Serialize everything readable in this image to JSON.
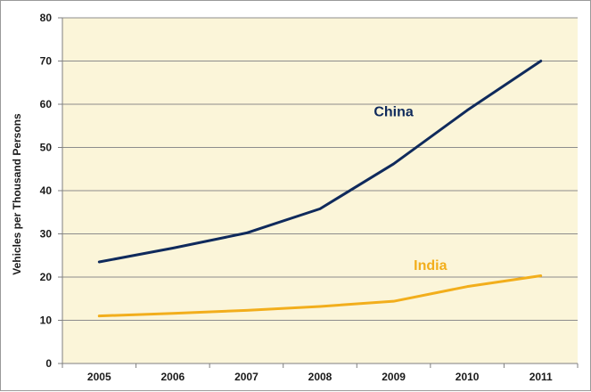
{
  "chart_data": {
    "type": "line",
    "title": "",
    "xlabel": "",
    "ylabel": "Vehicles per Thousand Persons",
    "x": [
      "2005",
      "2006",
      "2007",
      "2008",
      "2009",
      "2010",
      "2011"
    ],
    "ylim": [
      0,
      80
    ],
    "yticks": [
      "0",
      "10",
      "20",
      "30",
      "40",
      "50",
      "60",
      "70",
      "80"
    ],
    "grid": true,
    "plot_background": "#fbf5d9",
    "series": [
      {
        "name": "China",
        "color": "#0f2a5c",
        "values": [
          23.5,
          26.7,
          30.2,
          35.8,
          46.2,
          58.6,
          70.0
        ]
      },
      {
        "name": "India",
        "color": "#f2ae1c",
        "values": [
          11.0,
          11.6,
          12.3,
          13.2,
          14.4,
          17.8,
          20.3
        ]
      }
    ]
  }
}
